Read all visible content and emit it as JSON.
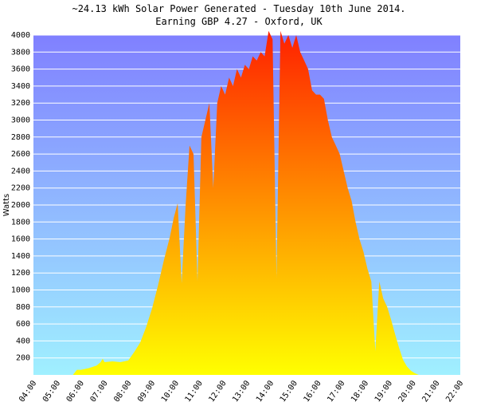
{
  "chart_data": {
    "type": "area",
    "title": "~24.13 kWh Solar Power Generated - Tuesday 10th June 2014.",
    "subtitle": "Earning GBP 4.27 - Oxford, UK",
    "ylabel": "Watts",
    "xlabel": "",
    "ylim": [
      0,
      4000
    ],
    "yticks": [
      "200",
      "400",
      "600",
      "800",
      "1000",
      "1200",
      "1400",
      "1600",
      "1800",
      "2000",
      "2200",
      "2400",
      "2600",
      "2800",
      "3000",
      "3200",
      "3400",
      "3600",
      "3800",
      "4000"
    ],
    "xticks": [
      "04:00",
      "05:00",
      "06:00",
      "07:00",
      "08:00",
      "09:00",
      "10:00",
      "11:00",
      "12:00",
      "13:00",
      "14:00",
      "15:00",
      "16:00",
      "17:00",
      "18:00",
      "19:00",
      "20:00",
      "21:00",
      "22:00"
    ],
    "xlim_hours": [
      4,
      22
    ],
    "grid": true,
    "colors": {
      "plot_bg_top": "#8080ff",
      "plot_bg_bottom": "#a0f0ff",
      "fill_top": "#ff2000",
      "fill_bottom": "#ffff00",
      "grid": "#ffffff"
    },
    "series": [
      {
        "x": [
          "05:40",
          "05:50",
          "06:00",
          "06:20",
          "06:40",
          "06:50",
          "06:55",
          "07:00",
          "07:20",
          "07:40",
          "08:00",
          "08:15",
          "08:30",
          "08:45",
          "09:00",
          "09:15",
          "09:30",
          "09:45",
          "09:55",
          "10:05",
          "10:15",
          "10:25",
          "10:35",
          "10:45",
          "10:55",
          "11:05",
          "11:15",
          "11:25",
          "11:35",
          "11:45",
          "11:55",
          "12:05",
          "12:15",
          "12:25",
          "12:35",
          "12:45",
          "12:55",
          "13:05",
          "13:15",
          "13:25",
          "13:35",
          "13:45",
          "13:55",
          "14:05",
          "14:15",
          "14:25",
          "14:35",
          "14:45",
          "14:55",
          "15:05",
          "15:15",
          "15:25",
          "15:35",
          "15:45",
          "15:55",
          "16:05",
          "16:15",
          "16:25",
          "16:35",
          "16:45",
          "16:55",
          "17:05",
          "17:15",
          "17:25",
          "17:35",
          "17:45",
          "17:55",
          "18:05",
          "18:15",
          "18:25",
          "18:35",
          "18:45",
          "18:55",
          "19:05",
          "19:15",
          "19:25",
          "19:35",
          "19:45",
          "19:55",
          "20:05",
          "20:15",
          "20:25",
          "20:35",
          "20:45",
          "20:55",
          "21:05",
          "21:15",
          "21:25"
        ],
        "y": [
          0,
          60,
          60,
          80,
          110,
          150,
          190,
          150,
          160,
          150,
          170,
          270,
          380,
          560,
          780,
          1050,
          1350,
          1620,
          1850,
          2020,
          1080,
          2000,
          2700,
          2600,
          1100,
          2800,
          3000,
          3200,
          2200,
          3200,
          3400,
          3300,
          3500,
          3400,
          3600,
          3500,
          3650,
          3600,
          3750,
          3700,
          3800,
          3750,
          4050,
          3950,
          1150,
          4050,
          3900,
          4000,
          3850,
          4000,
          3800,
          3700,
          3600,
          3350,
          3300,
          3300,
          3250,
          3000,
          2800,
          2700,
          2600,
          2400,
          2200,
          2050,
          1800,
          1600,
          1450,
          1250,
          1100,
          280,
          1100,
          900,
          800,
          650,
          480,
          320,
          180,
          100,
          50,
          20,
          0,
          0,
          0,
          0,
          0,
          0,
          0,
          0
        ]
      }
    ]
  }
}
